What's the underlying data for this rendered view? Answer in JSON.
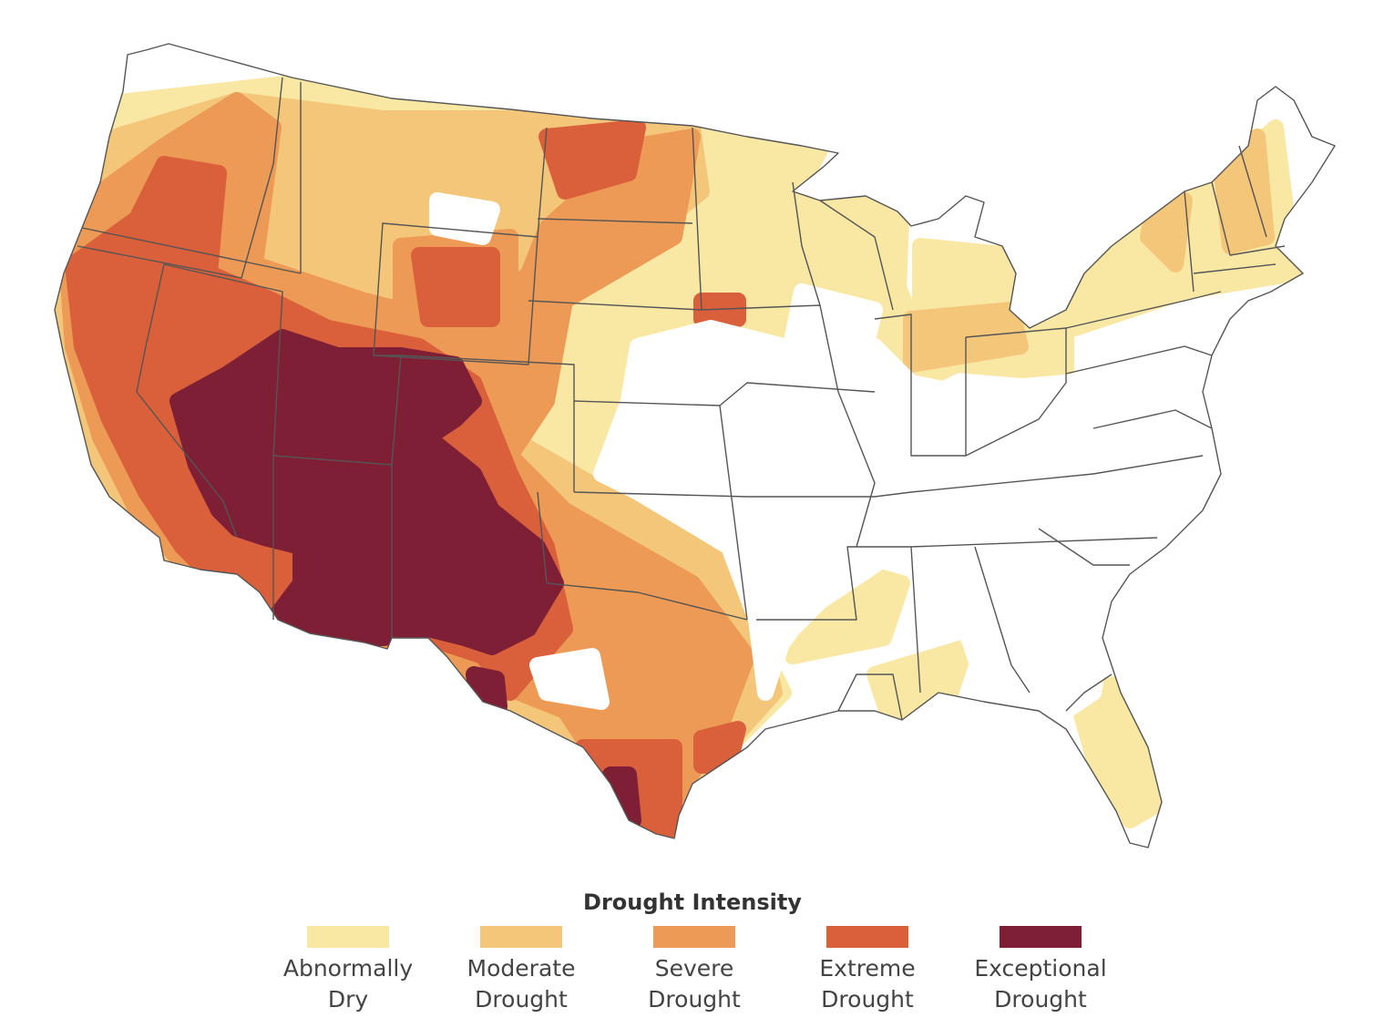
{
  "map": {
    "region": "contiguous-united-states",
    "colors": {
      "land": "#ffffff",
      "border": "#555555",
      "none": "#ffffff"
    }
  },
  "legend": {
    "title": "Drought Intensity",
    "items": [
      {
        "id": "abnormally-dry",
        "line1": "Abnormally",
        "line2": "Dry",
        "color": "#f9e7a4"
      },
      {
        "id": "moderate-drought",
        "line1": "Moderate",
        "line2": "Drought",
        "color": "#f4c67a"
      },
      {
        "id": "severe-drought",
        "line1": "Severe",
        "line2": "Drought",
        "color": "#ec9a55"
      },
      {
        "id": "extreme-drought",
        "line1": "Extreme",
        "line2": "Drought",
        "color": "#d9603b"
      },
      {
        "id": "exceptional-drought",
        "line1": "Exceptional",
        "line2": "Drought",
        "color": "#7e1f36"
      }
    ]
  }
}
